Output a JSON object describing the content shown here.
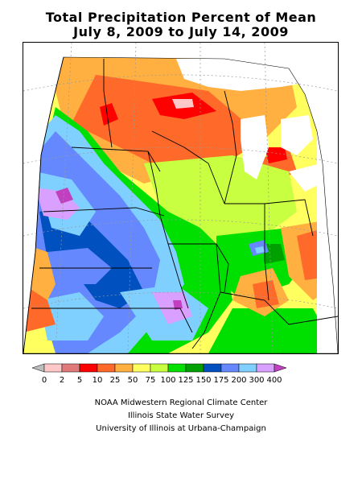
{
  "title": {
    "line1": "Total Precipitation Percent of Mean",
    "line2": "July 8, 2009 to July 14, 2009"
  },
  "legend": {
    "labels": [
      "0",
      "2",
      "5",
      "10",
      "25",
      "50",
      "75",
      "100",
      "125",
      "150",
      "175",
      "200",
      "300",
      "400"
    ],
    "colors": [
      "#bdbdbd",
      "#ffc8c8",
      "#e07a7a",
      "#ff0000",
      "#ff6a2a",
      "#ffb040",
      "#ffff60",
      "#c8ff40",
      "#00e000",
      "#00a000",
      "#0050c0",
      "#6688ff",
      "#80d0ff",
      "#d9a0ff",
      "#c040c0"
    ]
  },
  "map": {
    "region": "Midwest",
    "palette": {
      "lt100": "#c8ff40",
      "p125": "#00e000",
      "p150": "#00a000",
      "p175": "#0050c0",
      "p200": "#6688ff",
      "p300": "#80d0ff",
      "p400": "#d9a0ff",
      "gt400": "#c040c0",
      "p75": "#ffff60",
      "p50": "#ffb040",
      "p25": "#ff6a2a",
      "p10": "#ff0000",
      "p5": "#e07a7a",
      "p2": "#ffc8c8",
      "p0": "#bdbdbd"
    }
  },
  "credits": {
    "line1": "NOAA Midwestern Regional Climate Center",
    "line2": "Illinois State Water Survey",
    "line3": "University of Illinois at Urbana-Champaign"
  }
}
